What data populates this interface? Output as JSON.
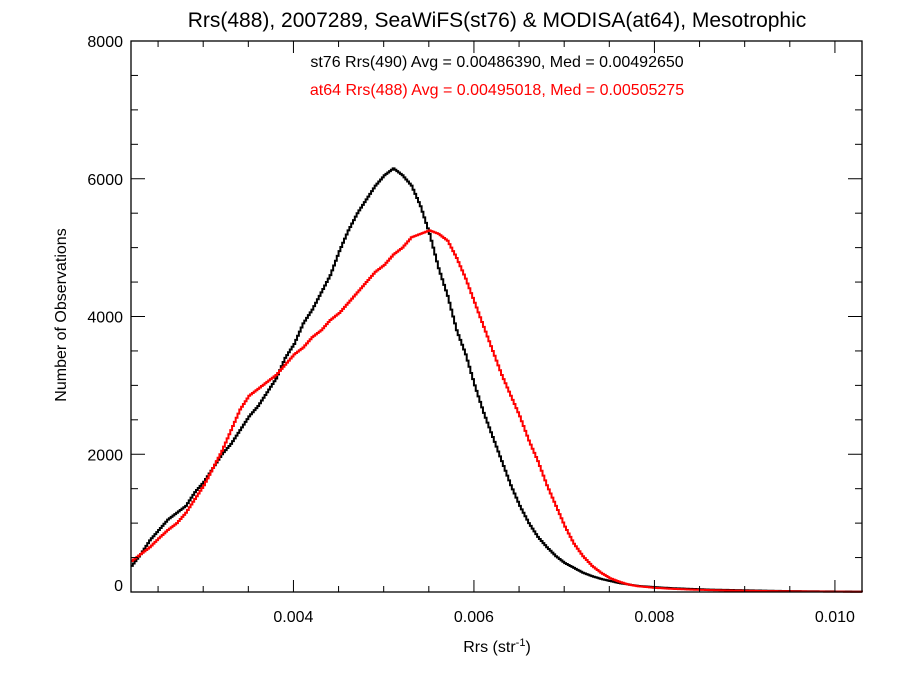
{
  "chart_data": {
    "type": "line",
    "step": true,
    "title": "Rrs(488), 2007289, SeaWiFS(st76) & MODISA(at64), Mesotrophic",
    "xlabel": {
      "base": "Rrs (str",
      "sup": "-1",
      "end": ")"
    },
    "ylabel": "Number of Observations",
    "xlim": [
      0.0022,
      0.0103
    ],
    "ylim": [
      0,
      8000
    ],
    "x_ticks": [
      0.004,
      0.006,
      0.008,
      0.01
    ],
    "x_tick_labels": [
      "0.004",
      "0.006",
      "0.008",
      "0.010"
    ],
    "y_ticks": [
      0,
      2000,
      4000,
      6000,
      8000
    ],
    "y_tick_labels": [
      "0",
      "2000",
      "4000",
      "6000",
      "8000"
    ],
    "x_minor_step": 0.0005,
    "y_minor_step": 500,
    "grid": false,
    "legend_placement": "top-center",
    "series": [
      {
        "name": "st76 Rrs(490) Avg = 0.00486390, Med = 0.00492650",
        "color": "#000000",
        "points": [
          [
            0.0022,
            380
          ],
          [
            0.0023,
            550
          ],
          [
            0.0024,
            750
          ],
          [
            0.0025,
            900
          ],
          [
            0.0026,
            1050
          ],
          [
            0.0027,
            1150
          ],
          [
            0.0028,
            1250
          ],
          [
            0.0029,
            1450
          ],
          [
            0.003,
            1600
          ],
          [
            0.0031,
            1800
          ],
          [
            0.0032,
            2000
          ],
          [
            0.0033,
            2150
          ],
          [
            0.0034,
            2350
          ],
          [
            0.0035,
            2550
          ],
          [
            0.0036,
            2700
          ],
          [
            0.0037,
            2900
          ],
          [
            0.0038,
            3100
          ],
          [
            0.0039,
            3400
          ],
          [
            0.004,
            3600
          ],
          [
            0.0041,
            3900
          ],
          [
            0.0042,
            4100
          ],
          [
            0.0043,
            4350
          ],
          [
            0.0044,
            4600
          ],
          [
            0.0045,
            4950
          ],
          [
            0.0046,
            5250
          ],
          [
            0.0047,
            5500
          ],
          [
            0.0048,
            5700
          ],
          [
            0.0049,
            5900
          ],
          [
            0.005,
            6050
          ],
          [
            0.0051,
            6150
          ],
          [
            0.0052,
            6050
          ],
          [
            0.0053,
            5900
          ],
          [
            0.0054,
            5600
          ],
          [
            0.0055,
            5200
          ],
          [
            0.0056,
            4700
          ],
          [
            0.0057,
            4300
          ],
          [
            0.0058,
            3800
          ],
          [
            0.0059,
            3450
          ],
          [
            0.006,
            3000
          ],
          [
            0.0061,
            2600
          ],
          [
            0.0062,
            2250
          ],
          [
            0.0063,
            1900
          ],
          [
            0.0064,
            1550
          ],
          [
            0.0065,
            1250
          ],
          [
            0.0066,
            1000
          ],
          [
            0.0067,
            800
          ],
          [
            0.0068,
            650
          ],
          [
            0.0069,
            520
          ],
          [
            0.007,
            420
          ],
          [
            0.0071,
            350
          ],
          [
            0.0072,
            280
          ],
          [
            0.0073,
            230
          ],
          [
            0.0074,
            190
          ],
          [
            0.0075,
            160
          ],
          [
            0.0076,
            130
          ],
          [
            0.0077,
            110
          ],
          [
            0.0078,
            90
          ],
          [
            0.008,
            70
          ],
          [
            0.0082,
            55
          ],
          [
            0.0084,
            45
          ],
          [
            0.0086,
            35
          ],
          [
            0.0088,
            30
          ],
          [
            0.009,
            25
          ],
          [
            0.0092,
            20
          ],
          [
            0.0094,
            15
          ],
          [
            0.0096,
            12
          ],
          [
            0.0098,
            10
          ],
          [
            0.01,
            8
          ],
          [
            0.0102,
            6
          ],
          [
            0.0103,
            5
          ]
        ]
      },
      {
        "name": "at64 Rrs(488) Avg = 0.00495018, Med = 0.00505275",
        "color": "#ff0000",
        "points": [
          [
            0.0022,
            450
          ],
          [
            0.0023,
            550
          ],
          [
            0.0024,
            650
          ],
          [
            0.0025,
            780
          ],
          [
            0.0026,
            900
          ],
          [
            0.0027,
            1000
          ],
          [
            0.0028,
            1150
          ],
          [
            0.0029,
            1350
          ],
          [
            0.003,
            1550
          ],
          [
            0.0031,
            1800
          ],
          [
            0.0032,
            2050
          ],
          [
            0.0033,
            2350
          ],
          [
            0.0034,
            2650
          ],
          [
            0.0035,
            2850
          ],
          [
            0.0036,
            2950
          ],
          [
            0.0037,
            3050
          ],
          [
            0.0038,
            3150
          ],
          [
            0.0039,
            3300
          ],
          [
            0.004,
            3450
          ],
          [
            0.0041,
            3550
          ],
          [
            0.0042,
            3700
          ],
          [
            0.0043,
            3800
          ],
          [
            0.0044,
            3950
          ],
          [
            0.0045,
            4050
          ],
          [
            0.0046,
            4200
          ],
          [
            0.0047,
            4350
          ],
          [
            0.0048,
            4500
          ],
          [
            0.0049,
            4650
          ],
          [
            0.005,
            4750
          ],
          [
            0.0051,
            4900
          ],
          [
            0.0052,
            5000
          ],
          [
            0.0053,
            5150
          ],
          [
            0.0054,
            5200
          ],
          [
            0.0055,
            5250
          ],
          [
            0.0056,
            5200
          ],
          [
            0.0057,
            5100
          ],
          [
            0.0058,
            4850
          ],
          [
            0.0059,
            4550
          ],
          [
            0.006,
            4200
          ],
          [
            0.0061,
            3850
          ],
          [
            0.0062,
            3500
          ],
          [
            0.0063,
            3150
          ],
          [
            0.0064,
            2850
          ],
          [
            0.0065,
            2550
          ],
          [
            0.0066,
            2200
          ],
          [
            0.0067,
            1900
          ],
          [
            0.0068,
            1550
          ],
          [
            0.0069,
            1250
          ],
          [
            0.007,
            950
          ],
          [
            0.0071,
            700
          ],
          [
            0.0072,
            520
          ],
          [
            0.0073,
            380
          ],
          [
            0.0074,
            280
          ],
          [
            0.0075,
            200
          ],
          [
            0.0076,
            150
          ],
          [
            0.0077,
            110
          ],
          [
            0.0078,
            85
          ],
          [
            0.008,
            60
          ],
          [
            0.0082,
            45
          ],
          [
            0.0084,
            35
          ],
          [
            0.0086,
            28
          ],
          [
            0.0088,
            22
          ],
          [
            0.009,
            18
          ],
          [
            0.0092,
            14
          ],
          [
            0.0094,
            11
          ],
          [
            0.0096,
            9
          ],
          [
            0.0098,
            7
          ],
          [
            0.01,
            5
          ],
          [
            0.0102,
            4
          ],
          [
            0.0103,
            3
          ]
        ]
      }
    ]
  }
}
